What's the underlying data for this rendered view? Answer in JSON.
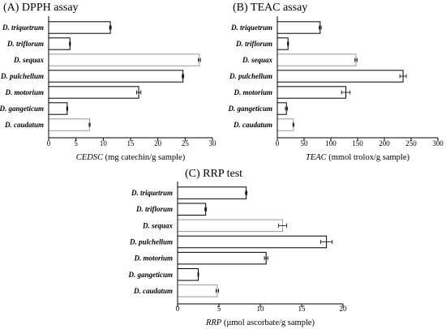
{
  "chart_data": [
    {
      "type": "bar",
      "orientation": "horizontal",
      "title": "(A) DPPH assay",
      "xlabel_var": "CEDSC",
      "xlabel_unit": "(mg catechin/g sample)",
      "categories": [
        "D. triquetrum",
        "D. triflorum",
        "D. sequax",
        "D. pulchellum",
        "D. motorium",
        "D. gangeticum",
        "D. caudatum"
      ],
      "values": [
        11.3,
        3.9,
        27.6,
        24.6,
        16.5,
        3.4,
        7.5
      ],
      "errors": [
        0.15,
        0.1,
        0.2,
        0.15,
        0.4,
        0.1,
        0.1
      ],
      "fill_colors": [
        "#ffffff",
        "#ffffff",
        "#ffffff",
        "#ffffff",
        "#ffffff",
        "#ffffff",
        "#ffffff"
      ],
      "edge_colors": [
        "#000000",
        "#000000",
        "#999999",
        "#000000",
        "#000000",
        "#000000",
        "#999999"
      ],
      "xlim": [
        0,
        30
      ],
      "xticks": [
        0,
        5,
        10,
        15,
        20,
        25,
        30
      ]
    },
    {
      "type": "bar",
      "orientation": "horizontal",
      "title": "(B) TEAC assay",
      "xlabel_var": "TEAC",
      "xlabel_unit": "(mmol trolox/g sample)",
      "categories": [
        "D. triquetrum",
        "D. triflorum",
        "D. sequax",
        "D. pulchellum",
        "D. motorium",
        "D. gangeticum",
        "D. caudatum"
      ],
      "values": [
        80,
        20,
        147,
        235,
        128,
        17,
        30
      ],
      "errors": [
        2,
        1,
        2,
        6,
        8,
        2,
        1
      ],
      "fill_colors": [
        "#ffffff",
        "#ffffff",
        "#ffffff",
        "#ffffff",
        "#ffffff",
        "#ffffff",
        "#ffffff"
      ],
      "edge_colors": [
        "#000000",
        "#000000",
        "#999999",
        "#000000",
        "#000000",
        "#000000",
        "#999999"
      ],
      "xlim": [
        0,
        300
      ],
      "xticks": [
        0,
        50,
        100,
        150,
        200,
        250,
        300
      ]
    },
    {
      "type": "bar",
      "orientation": "horizontal",
      "title": "(C) RRP test",
      "xlabel_var": "RRP",
      "xlabel_unit": "(µmol ascorbate/g sample)",
      "categories": [
        "D. triquetrum",
        "D. triflorum",
        "D. sequax",
        "D. pulchellum",
        "D. motorium",
        "D. gangeticum",
        "D. caudatum"
      ],
      "values": [
        8.3,
        3.4,
        12.7,
        18.0,
        10.7,
        2.5,
        4.8
      ],
      "errors": [
        0.1,
        0.1,
        0.5,
        0.7,
        0.2,
        0.05,
        0.15
      ],
      "fill_colors": [
        "#ffffff",
        "#ffffff",
        "#ffffff",
        "#ffffff",
        "#ffffff",
        "#ffffff",
        "#ffffff"
      ],
      "edge_colors": [
        "#000000",
        "#000000",
        "#999999",
        "#000000",
        "#000000",
        "#000000",
        "#999999"
      ],
      "xlim": [
        0,
        20
      ],
      "xticks": [
        0,
        5,
        10,
        15,
        20
      ]
    }
  ]
}
